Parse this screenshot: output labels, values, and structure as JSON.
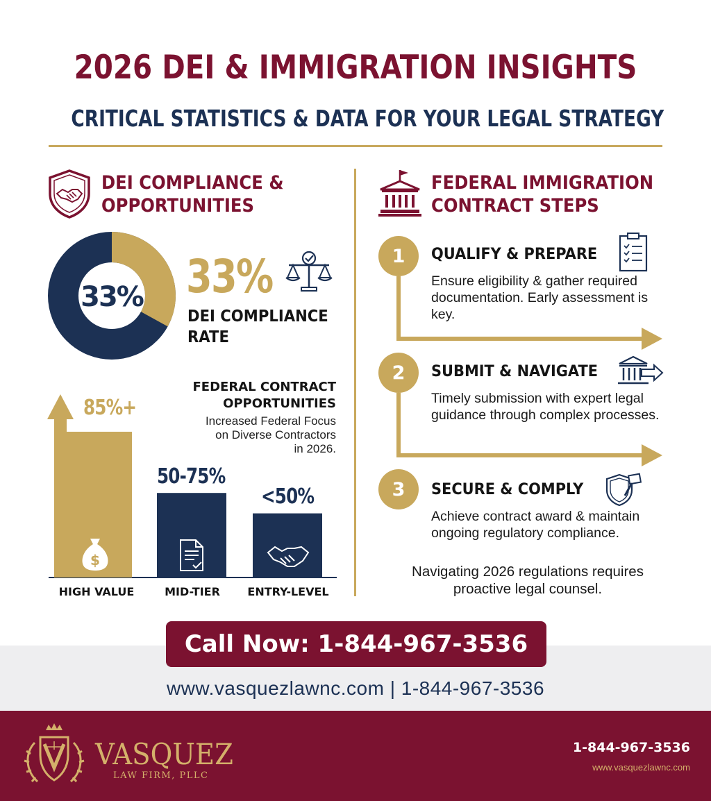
{
  "header": {
    "title": "2026 DEI & IMMIGRATION INSIGHTS",
    "subtitle": "CRITICAL STATISTICS & DATA FOR YOUR LEGAL STRATEGY"
  },
  "dei": {
    "heading_line1": "DEI COMPLIANCE &",
    "heading_line2": "OPPORTUNITIES",
    "icon": "handshake-shield-icon",
    "donut_label": "33%",
    "donut_fraction": 0.33,
    "big_stat": "33%",
    "stat_icon": "scales-icon",
    "stat_label_line1": "DEI COMPLIANCE",
    "stat_label_line2": "RATE"
  },
  "contracts": {
    "title_line1": "FEDERAL CONTRACT",
    "title_line2": "OPPORTUNITIES",
    "body_line1": "Increased Federal Focus",
    "body_line2": "on Diverse Contractors",
    "body_line3": "in 2026."
  },
  "chart_data": {
    "type": "bar",
    "categories": [
      "HIGH VALUE",
      "MID-TIER",
      "ENTRY-LEVEL"
    ],
    "value_labels": [
      "85%+",
      "50-75%",
      "<50%"
    ],
    "values": [
      85,
      62.5,
      50
    ],
    "colors": [
      "#c8a85c",
      "#1c3154",
      "#1c3154"
    ],
    "icons": [
      "money-bag-icon",
      "document-icon",
      "handshake-icon"
    ]
  },
  "immigration": {
    "heading_line1": "FEDERAL IMMIGRATION",
    "heading_line2": "CONTRACT STEPS",
    "icon": "courthouse-icon",
    "steps": [
      {
        "num": "1",
        "title": "QUALIFY & PREPARE",
        "desc": "Ensure eligibility & gather required documentation. Early assessment is key.",
        "icon": "clipboard-icon"
      },
      {
        "num": "2",
        "title": "SUBMIT & NAVIGATE",
        "desc": "Timely submission with expert legal guidance through complex processes.",
        "icon": "courthouse-arrow-icon"
      },
      {
        "num": "3",
        "title": "SECURE & COMPLY",
        "desc": "Achieve contract award & maintain ongoing regulatory compliance.",
        "icon": "shield-gavel-icon"
      }
    ],
    "closing_line1": "Navigating 2026 regulations requires",
    "closing_line2": "proactive legal counsel."
  },
  "cta": {
    "label": "Call Now: 1-844-967-3536"
  },
  "contact_line": "www.vasquezlawnc.com | 1-844-967-3536",
  "footer": {
    "brand_name": "VASQUEZ",
    "brand_sub": "LAW FIRM, PLLC",
    "phone": "1-844-967-3536",
    "website": "www.vasquezlawnc.com"
  },
  "colors": {
    "maroon": "#7b1230",
    "navy": "#1c3154",
    "gold": "#c8a85c"
  }
}
